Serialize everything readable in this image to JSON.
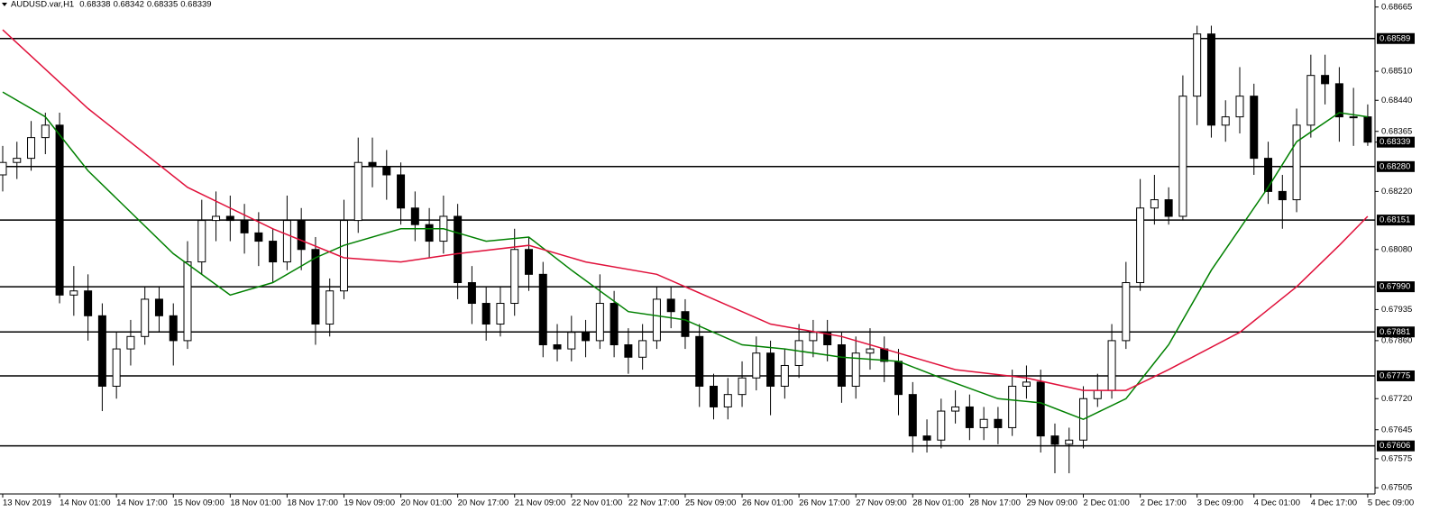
{
  "chart_data": {
    "type": "candlestick",
    "title": "AUDUSD.var,H1",
    "quote": [
      0.68338,
      0.68342,
      0.68335,
      0.68339
    ],
    "up_color": "#ffffff",
    "down_color": "#000000",
    "outline_color": "#000000",
    "ylim": [
      0.6749,
      0.68682
    ],
    "yticks": [
      0.68665,
      {
        "value": 0.6851,
        "label": "0.68510"
      },
      {
        "value": 0.6844,
        "label": "0.68440"
      },
      0.68365,
      {
        "value": 0.6822,
        "label": "0.68220"
      },
      {
        "value": 0.6808,
        "label": "0.68080"
      },
      0.67935,
      {
        "value": 0.6786,
        "label": "0.67860"
      },
      {
        "value": 0.6772,
        "label": "0.67720"
      },
      0.67645,
      0.67575,
      0.67505
    ],
    "levels": [
      0.68589,
      {
        "value": 0.6828,
        "label": "0.68280"
      },
      0.68151,
      {
        "value": 0.6799,
        "label": "0.67990"
      },
      0.67881,
      0.67775,
      0.67606
    ],
    "current_price": 0.68339,
    "categories": [
      "13 Nov 2019",
      null,
      null,
      null,
      "14 Nov 01:00",
      null,
      null,
      null,
      "14 Nov 17:00",
      null,
      null,
      null,
      "15 Nov 09:00",
      null,
      null,
      null,
      "18 Nov 01:00",
      null,
      null,
      null,
      "18 Nov 17:00",
      null,
      null,
      null,
      "19 Nov 09:00",
      null,
      null,
      null,
      "20 Nov 01:00",
      null,
      null,
      null,
      "20 Nov 17:00",
      null,
      null,
      null,
      "21 Nov 09:00",
      null,
      null,
      null,
      "22 Nov 01:00",
      null,
      null,
      null,
      "22 Nov 17:00",
      null,
      null,
      null,
      "25 Nov 09:00",
      null,
      null,
      null,
      "26 Nov 01:00",
      null,
      null,
      null,
      "26 Nov 17:00",
      null,
      null,
      null,
      "27 Nov 09:00",
      null,
      null,
      null,
      "28 Nov 01:00",
      null,
      null,
      null,
      "28 Nov 17:00",
      null,
      null,
      null,
      "29 Nov 09:00",
      null,
      null,
      null,
      "2 Dec 01:00",
      null,
      null,
      null,
      "2 Dec 17:00",
      null,
      null,
      null,
      "3 Dec 09:00",
      null,
      null,
      null,
      "4 Dec 01:00",
      null,
      null,
      null,
      "4 Dec 17:00",
      null,
      null,
      null,
      "5 Dec 09:00"
    ],
    "ohlc": [
      [
        0.6826,
        0.6833,
        0.6822,
        0.6829
      ],
      [
        0.6829,
        0.6834,
        0.6825,
        0.683
      ],
      [
        0.683,
        0.6839,
        0.6827,
        0.6835
      ],
      [
        0.6835,
        0.6841,
        0.6831,
        0.6838
      ],
      [
        0.6838,
        0.6841,
        0.6795,
        0.6797
      ],
      [
        0.6797,
        0.6804,
        0.6792,
        0.6798
      ],
      [
        0.6798,
        0.6802,
        0.6786,
        0.6792
      ],
      [
        0.6792,
        0.6795,
        0.6769,
        0.6775
      ],
      [
        0.6775,
        0.6788,
        0.6772,
        0.6784
      ],
      [
        0.6784,
        0.6791,
        0.678,
        0.6787
      ],
      [
        0.6787,
        0.6799,
        0.6785,
        0.6796
      ],
      [
        0.6796,
        0.6799,
        0.6788,
        0.6792
      ],
      [
        0.6792,
        0.6795,
        0.678,
        0.6786
      ],
      [
        0.6786,
        0.681,
        0.6784,
        0.6805
      ],
      [
        0.6805,
        0.682,
        0.6802,
        0.6815
      ],
      [
        0.6815,
        0.6822,
        0.681,
        0.6816
      ],
      [
        0.6816,
        0.6821,
        0.681,
        0.6815
      ],
      [
        0.6815,
        0.6819,
        0.6807,
        0.6812
      ],
      [
        0.6812,
        0.6817,
        0.6804,
        0.681
      ],
      [
        0.681,
        0.6813,
        0.68,
        0.6805
      ],
      [
        0.6805,
        0.6821,
        0.6803,
        0.6815
      ],
      [
        0.6815,
        0.6818,
        0.6803,
        0.6808
      ],
      [
        0.6808,
        0.6811,
        0.6785,
        0.679
      ],
      [
        0.679,
        0.6801,
        0.6787,
        0.6798
      ],
      [
        0.6798,
        0.682,
        0.6796,
        0.6815
      ],
      [
        0.6815,
        0.6835,
        0.6812,
        0.6829
      ],
      [
        0.6829,
        0.6835,
        0.6823,
        0.6828
      ],
      [
        0.6828,
        0.6832,
        0.682,
        0.6826
      ],
      [
        0.6826,
        0.6829,
        0.6814,
        0.6818
      ],
      [
        0.6818,
        0.6822,
        0.681,
        0.6814
      ],
      [
        0.6814,
        0.6818,
        0.6806,
        0.681
      ],
      [
        0.681,
        0.6821,
        0.6807,
        0.6816
      ],
      [
        0.6816,
        0.6819,
        0.6796,
        0.68
      ],
      [
        0.68,
        0.6804,
        0.679,
        0.6795
      ],
      [
        0.6795,
        0.6799,
        0.6786,
        0.679
      ],
      [
        0.679,
        0.6799,
        0.6787,
        0.6795
      ],
      [
        0.6795,
        0.6813,
        0.6792,
        0.6808
      ],
      [
        0.6808,
        0.6811,
        0.6798,
        0.6802
      ],
      [
        0.6802,
        0.6805,
        0.6782,
        0.6785
      ],
      [
        0.6785,
        0.679,
        0.6781,
        0.6784
      ],
      [
        0.6784,
        0.6792,
        0.6781,
        0.6788
      ],
      [
        0.6788,
        0.6791,
        0.6782,
        0.6786
      ],
      [
        0.6786,
        0.6802,
        0.6784,
        0.6795
      ],
      [
        0.6795,
        0.6798,
        0.6782,
        0.6785
      ],
      [
        0.6785,
        0.6789,
        0.6778,
        0.6782
      ],
      [
        0.6782,
        0.679,
        0.6779,
        0.6786
      ],
      [
        0.6786,
        0.6799,
        0.6784,
        0.6796
      ],
      [
        0.6796,
        0.6799,
        0.6789,
        0.6793
      ],
      [
        0.6793,
        0.6796,
        0.6784,
        0.6787
      ],
      [
        0.6787,
        0.679,
        0.677,
        0.6775
      ],
      [
        0.6775,
        0.6778,
        0.6767,
        0.677
      ],
      [
        0.677,
        0.6777,
        0.6767,
        0.6773
      ],
      [
        0.6773,
        0.6781,
        0.677,
        0.6777
      ],
      [
        0.6777,
        0.6787,
        0.6774,
        0.6783
      ],
      [
        0.6783,
        0.6786,
        0.6768,
        0.6775
      ],
      [
        0.6775,
        0.6784,
        0.6772,
        0.678
      ],
      [
        0.678,
        0.679,
        0.6777,
        0.6786
      ],
      [
        0.6786,
        0.6791,
        0.6782,
        0.6788
      ],
      [
        0.6788,
        0.6791,
        0.6781,
        0.6785
      ],
      [
        0.6785,
        0.6788,
        0.6771,
        0.6775
      ],
      [
        0.6775,
        0.6787,
        0.6772,
        0.6783
      ],
      [
        0.6783,
        0.6789,
        0.6779,
        0.6784
      ],
      [
        0.6784,
        0.6787,
        0.6776,
        0.6781
      ],
      [
        0.6781,
        0.6784,
        0.6768,
        0.6773
      ],
      [
        0.6773,
        0.6776,
        0.6759,
        0.6763
      ],
      [
        0.6763,
        0.6767,
        0.6759,
        0.6762
      ],
      [
        0.6762,
        0.6772,
        0.676,
        0.6769
      ],
      [
        0.6769,
        0.6774,
        0.6766,
        0.677
      ],
      [
        0.677,
        0.6773,
        0.6762,
        0.6765
      ],
      [
        0.6765,
        0.677,
        0.6762,
        0.6767
      ],
      [
        0.6767,
        0.677,
        0.6761,
        0.6765
      ],
      [
        0.6765,
        0.6779,
        0.6763,
        0.6775
      ],
      [
        0.6775,
        0.678,
        0.6772,
        0.6776
      ],
      [
        0.6776,
        0.6779,
        0.6759,
        0.6763
      ],
      [
        0.6763,
        0.6766,
        0.6754,
        0.6761
      ],
      [
        0.6761,
        0.6765,
        0.6754,
        0.6762
      ],
      [
        0.6762,
        0.6775,
        0.676,
        0.6772
      ],
      [
        0.6772,
        0.6778,
        0.677,
        0.6774
      ],
      [
        0.6774,
        0.679,
        0.6772,
        0.6786
      ],
      [
        0.6786,
        0.6805,
        0.6784,
        0.68
      ],
      [
        0.68,
        0.6825,
        0.6798,
        0.6818
      ],
      [
        0.6818,
        0.6826,
        0.6814,
        0.682
      ],
      [
        0.682,
        0.6823,
        0.6814,
        0.6816
      ],
      [
        0.6816,
        0.685,
        0.6815,
        0.6845
      ],
      [
        0.6845,
        0.6862,
        0.6838,
        0.686
      ],
      [
        0.686,
        0.6862,
        0.6835,
        0.6838
      ],
      [
        0.6838,
        0.6844,
        0.6834,
        0.684
      ],
      [
        0.684,
        0.6852,
        0.6836,
        0.6845
      ],
      [
        0.6845,
        0.6848,
        0.6826,
        0.683
      ],
      [
        0.683,
        0.6834,
        0.6819,
        0.6822
      ],
      [
        0.6822,
        0.6826,
        0.6813,
        0.682
      ],
      [
        0.682,
        0.6842,
        0.6817,
        0.6838
      ],
      [
        0.6838,
        0.6855,
        0.6835,
        0.685
      ],
      [
        0.685,
        0.6855,
        0.6843,
        0.6848
      ],
      [
        0.6848,
        0.6852,
        0.6834,
        0.684
      ],
      [
        0.684,
        0.6847,
        0.6833,
        0.684
      ],
      [
        0.684,
        0.6843,
        0.6833,
        0.68339
      ]
    ],
    "ma": [
      {
        "color": "#008000",
        "x": [
          0,
          3,
          6,
          12,
          16,
          19,
          22,
          24,
          28,
          31,
          34,
          37,
          40,
          44,
          48,
          52,
          55,
          59,
          63,
          66,
          70,
          73,
          76,
          79,
          82,
          85,
          89,
          91,
          94,
          96
        ],
        "values": [
          0.6846,
          0.684,
          0.6827,
          0.6807,
          0.6797,
          0.68,
          0.6806,
          0.6809,
          0.6813,
          0.6813,
          0.681,
          0.6811,
          0.6803,
          0.6793,
          0.6791,
          0.6785,
          0.6784,
          0.6782,
          0.6781,
          0.6777,
          0.6772,
          0.6771,
          0.6767,
          0.6772,
          0.6785,
          0.6803,
          0.6823,
          0.6834,
          0.6841,
          0.684
        ]
      },
      {
        "color": "#e0103a",
        "x": [
          0,
          6,
          13,
          19,
          24,
          28,
          32,
          37,
          41,
          46,
          50,
          54,
          59,
          63,
          67,
          72,
          76,
          79,
          82,
          87,
          91,
          94,
          96
        ],
        "values": [
          0.6861,
          0.6842,
          0.6823,
          0.6813,
          0.6806,
          0.6805,
          0.6807,
          0.6809,
          0.6805,
          0.6802,
          0.6796,
          0.679,
          0.6787,
          0.6783,
          0.6779,
          0.6777,
          0.6774,
          0.6774,
          0.6779,
          0.6788,
          0.6799,
          0.6809,
          0.6816
        ]
      }
    ]
  }
}
